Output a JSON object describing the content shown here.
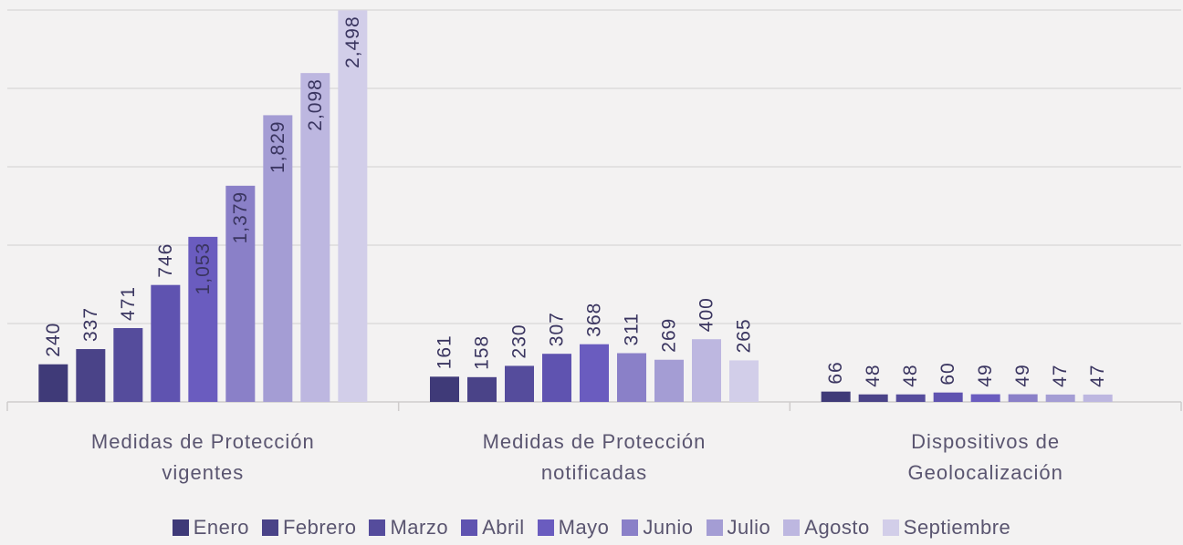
{
  "chart_data": {
    "type": "bar",
    "categories": [
      "Medidas de Protección vigentes",
      "Medidas de Protección notificadas",
      "Dispositivos de Geolocalización"
    ],
    "ylim": [
      0,
      2500
    ],
    "yticks": [
      0,
      500,
      1000,
      1500,
      2000,
      2500
    ],
    "grid": true,
    "legend": "bottom",
    "series": [
      {
        "name": "Enero",
        "color": "#3f3a78",
        "values": [
          240,
          161,
          66
        ]
      },
      {
        "name": "Febrero",
        "color": "#4a4388",
        "values": [
          337,
          158,
          48
        ]
      },
      {
        "name": "Marzo",
        "color": "#554c9c",
        "values": [
          471,
          230,
          48
        ]
      },
      {
        "name": "Abril",
        "color": "#5f53b0",
        "values": [
          746,
          307,
          60
        ]
      },
      {
        "name": "Mayo",
        "color": "#6a5cbf",
        "values": [
          1053,
          368,
          49
        ],
        "value_labels": [
          "1,053",
          "368",
          "49"
        ]
      },
      {
        "name": "Junio",
        "color": "#8a80c8",
        "values": [
          1379,
          311,
          49
        ],
        "value_labels": [
          "1,379",
          "311",
          "49"
        ]
      },
      {
        "name": "Julio",
        "color": "#a49dd4",
        "values": [
          1829,
          269,
          47
        ],
        "value_labels": [
          "1,829",
          "269",
          "47"
        ]
      },
      {
        "name": "Agosto",
        "color": "#bdb7e0",
        "values": [
          2098,
          400,
          47
        ],
        "value_labels": [
          "2,098",
          "400",
          "47"
        ]
      },
      {
        "name": "Septiembre",
        "color": "#d2cee9",
        "values": [
          2498,
          265,
          null
        ],
        "value_labels": [
          "2,498",
          "265",
          null
        ]
      }
    ]
  }
}
